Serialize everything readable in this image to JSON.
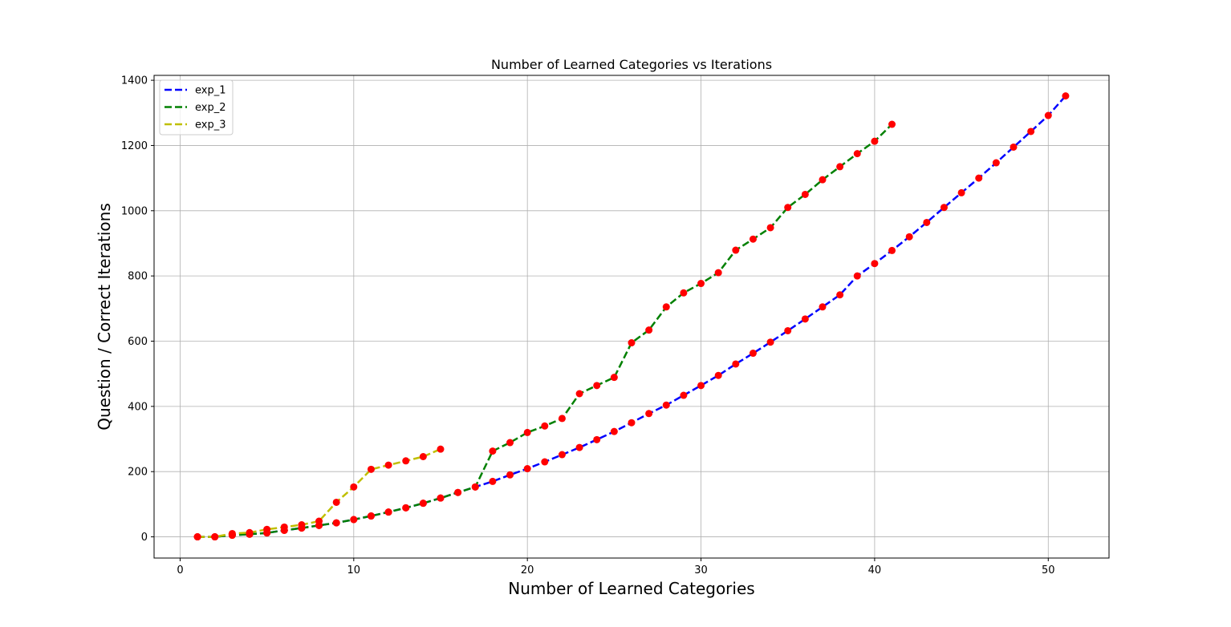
{
  "chart_data": {
    "type": "line",
    "title": "Number of Learned Categories vs Iterations",
    "xlabel": "Number of Learned Categories",
    "ylabel": "Question / Correct Iterations",
    "xlim": [
      -1.5,
      53.5
    ],
    "ylim": [
      -65,
      1415
    ],
    "xticks": [
      0,
      10,
      20,
      30,
      40,
      50
    ],
    "yticks": [
      0,
      200,
      400,
      600,
      800,
      1000,
      1200,
      1400
    ],
    "grid": true,
    "legend_position": "top-left",
    "marker_color": "#ff0000",
    "series": [
      {
        "name": "exp_1",
        "color": "#0000ff",
        "x": [
          1,
          2,
          3,
          4,
          5,
          6,
          7,
          8,
          9,
          10,
          11,
          12,
          13,
          14,
          15,
          16,
          17,
          18,
          19,
          20,
          21,
          22,
          23,
          24,
          25,
          26,
          27,
          28,
          29,
          30,
          31,
          32,
          33,
          34,
          35,
          36,
          37,
          38,
          39,
          40,
          41,
          42,
          43,
          44,
          45,
          46,
          47,
          48,
          49,
          50,
          51
        ],
        "y": [
          0,
          0,
          5,
          8,
          12,
          20,
          27,
          35,
          43,
          53,
          64,
          76,
          89,
          103,
          119,
          136,
          153,
          170,
          190,
          209,
          230,
          252,
          274,
          298,
          323,
          350,
          378,
          404,
          434,
          464,
          495,
          530,
          563,
          597,
          632,
          668,
          705,
          742,
          800,
          838,
          878,
          920,
          964,
          1010,
          1055,
          1100,
          1147,
          1195,
          1243,
          1292,
          1352
        ]
      },
      {
        "name": "exp_2",
        "color": "#008000",
        "x": [
          1,
          2,
          3,
          4,
          5,
          6,
          7,
          8,
          9,
          10,
          11,
          12,
          13,
          14,
          15,
          16,
          17,
          18,
          19,
          20,
          21,
          22,
          23,
          24,
          25,
          26,
          27,
          28,
          29,
          30,
          31,
          32,
          33,
          34,
          35,
          36,
          37,
          38,
          39,
          40,
          41
        ],
        "y": [
          0,
          0,
          5,
          8,
          12,
          20,
          27,
          35,
          43,
          53,
          64,
          76,
          89,
          103,
          119,
          136,
          153,
          263,
          289,
          320,
          340,
          363,
          439,
          464,
          489,
          595,
          634,
          705,
          748,
          777,
          810,
          879,
          913,
          948,
          1010,
          1050,
          1095,
          1135,
          1175,
          1213,
          1265
        ]
      },
      {
        "name": "exp_3",
        "color": "#bfbf00",
        "x": [
          1,
          2,
          3,
          4,
          5,
          6,
          7,
          8,
          9,
          10,
          11,
          12,
          13,
          14,
          15
        ],
        "y": [
          0,
          0,
          10,
          13,
          23,
          30,
          37,
          48,
          106,
          153,
          207,
          220,
          233,
          246,
          269
        ]
      }
    ]
  }
}
